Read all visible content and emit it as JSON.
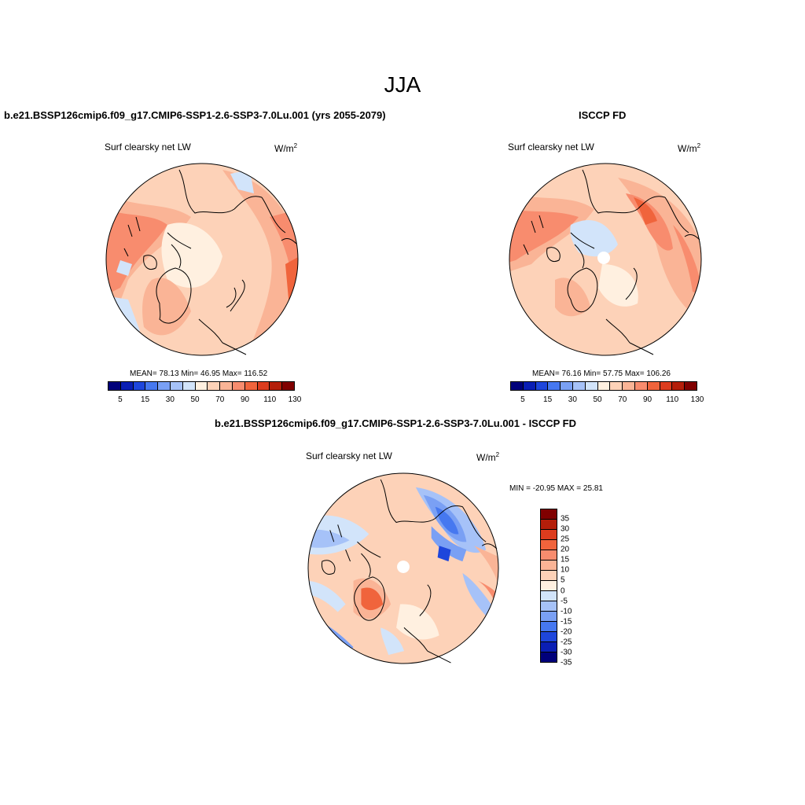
{
  "season": "JJA",
  "panels": {
    "model": {
      "title": "b.e21.BSSP126cmip6.f09_g17.CMIP6-SSP1-2.6-SSP3-7.0Lu.001 (yrs 2055-2079)",
      "variable": "Surf clearsky net LW",
      "units_base": "W/m",
      "units_exp": "2",
      "stats": "MEAN=  78.13  Min=  46.95  Max= 116.52"
    },
    "obs": {
      "title": "ISCCP FD",
      "variable": "Surf clearsky net LW",
      "units_base": "W/m",
      "units_exp": "2",
      "stats": "MEAN=  76.16  Min=  57.75  Max= 106.26"
    },
    "diff": {
      "title": "b.e21.BSSP126cmip6.f09_g17.CMIP6-SSP1-2.6-SSP3-7.0Lu.001 - ISCCP FD",
      "variable": "Surf clearsky net LW",
      "units_base": "W/m",
      "units_exp": "2",
      "stats": "MIN = -20.95 MAX =  25.81"
    }
  },
  "colorbar_abs": {
    "colors": [
      "#00007a",
      "#0a1eb4",
      "#1e46dc",
      "#4678f0",
      "#7aa0f4",
      "#a6c2f8",
      "#d2e4fa",
      "#fff0e0",
      "#fdd2b8",
      "#fab496",
      "#f88c6e",
      "#f0643c",
      "#dc3c1e",
      "#b41e0a",
      "#800000"
    ],
    "labels": [
      "5",
      "15",
      "30",
      "50",
      "70",
      "90",
      "110",
      "130"
    ]
  },
  "colorbar_diff": {
    "colors": [
      "#800000",
      "#b41e0a",
      "#dc3c1e",
      "#f0643c",
      "#f88c6e",
      "#fab496",
      "#fdd2b8",
      "#fff0e0",
      "#d2e4fa",
      "#a6c2f8",
      "#7aa0f4",
      "#4678f0",
      "#1e46dc",
      "#0a1eb4",
      "#00007a"
    ],
    "labels": [
      "35",
      "30",
      "25",
      "20",
      "15",
      "10",
      "5",
      "0",
      "-5",
      "-10",
      "-15",
      "-20",
      "-25",
      "-30",
      "-35"
    ]
  },
  "map_colors": {
    "c_pale": "#fff0e0",
    "c_light": "#fdd2b8",
    "c_mid": "#fab496",
    "c_strong": "#f88c6e",
    "c_deep": "#f0643c",
    "c_red": "#dc3c1e",
    "c_b1": "#d2e4fa",
    "c_b2": "#a6c2f8",
    "c_b3": "#7aa0f4",
    "c_b4": "#4678f0",
    "c_b5": "#1e46dc"
  }
}
